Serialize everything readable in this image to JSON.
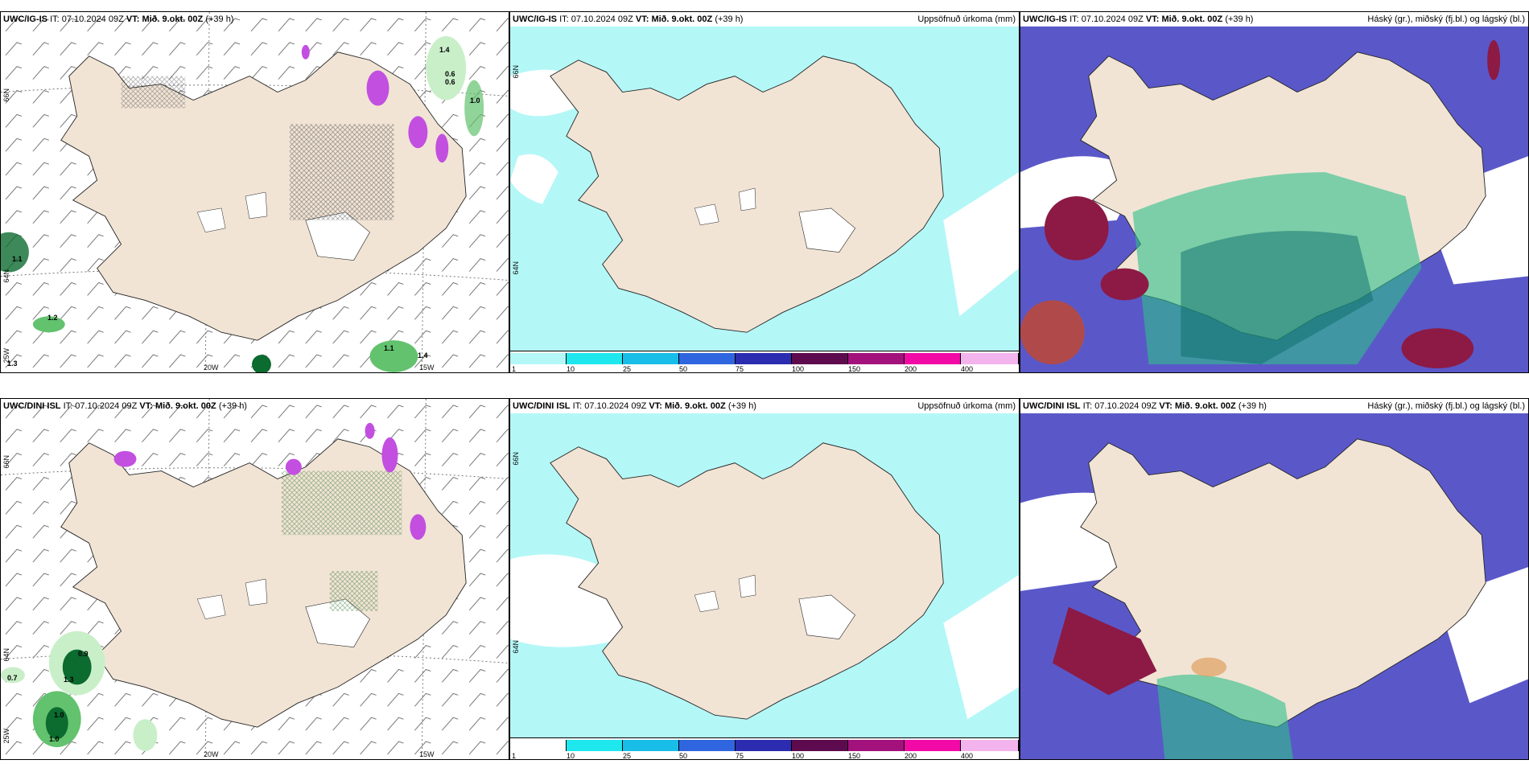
{
  "panels": {
    "top": {
      "wind": {
        "model": "UWC/IG-IS",
        "it_prefix": "IT:",
        "it_value": "07.10.2024 09Z",
        "vt_label": "VT: Mið. 9.okt. 00Z",
        "lead": "(+39 h)",
        "lat_66": "66N",
        "lat_64": "64N",
        "lon_20": "20W",
        "lon_15": "15W",
        "lon_25": "25W",
        "labels": [
          "1.4",
          "0.6",
          "0.6",
          "1.0",
          "1.1",
          "1.2",
          "1.1",
          "1.4",
          "1.3"
        ]
      },
      "precip": {
        "model": "UWC/IG-IS",
        "it_prefix": "IT:",
        "it_value": "07.10.2024 09Z",
        "vt_label": "VT: Mið. 9.okt. 00Z",
        "lead": "(+39 h)",
        "title": "Uppsöfnuð úrkoma (mm)",
        "lat_66": "66N",
        "lat_64": "64N"
      },
      "cloud": {
        "model": "UWC/IG-IS",
        "it_prefix": "IT:",
        "it_value": "07.10.2024 09Z",
        "vt_label": "VT: Mið. 9.okt. 00Z",
        "lead": "(+39 h)",
        "title": "Háský (gr.), miðský (fj.bl.) og lágský (bl.)"
      }
    },
    "bottom": {
      "wind": {
        "model": "UWC/DINI ISL",
        "it_prefix": "IT:",
        "it_value": "07.10.2024 09Z",
        "vt_label": "VT: Mið. 9.okt. 00Z",
        "lead": "(+39 h)",
        "lat_66": "66N",
        "lat_64": "64N",
        "lon_20": "20W",
        "lon_15": "15W",
        "lon_25": "25W",
        "labels": [
          "0.9",
          "0.7",
          "1.3",
          "1.0",
          "1.0"
        ]
      },
      "precip": {
        "model": "UWC/DINI ISL",
        "it_prefix": "IT:",
        "it_value": "07.10.2024 09Z",
        "vt_label": "VT: Mið. 9.okt. 00Z",
        "lead": "(+39 h)",
        "title": "Uppsöfnuð úrkoma (mm)",
        "lat_66": "66N",
        "lat_64": "64N"
      },
      "cloud": {
        "model": "UWC/DINI ISL",
        "it_prefix": "IT:",
        "it_value": "07.10.2024 09Z",
        "vt_label": "VT: Mið. 9.okt. 00Z",
        "lead": "(+39 h)",
        "title": "Háský (gr.), miðský (fj.bl.) og lágský (bl.)"
      }
    }
  },
  "colorbar": {
    "ticks": [
      "1",
      "10",
      "25",
      "50",
      "75",
      "100",
      "150",
      "200",
      "400"
    ],
    "colors": [
      "#b4f7f7",
      "#1ee8ee",
      "#18bde8",
      "#2f66e0",
      "#2b2cb0",
      "#5e0a4e",
      "#a3117c",
      "#f20aa6",
      "#f3b4ee"
    ]
  },
  "palette": {
    "land": "#f1e4d5",
    "sea": "#ffffff",
    "precip_light": "#b4f7f7",
    "green_light": "#c9efc9",
    "green_mid": "#62c26e",
    "green_dark": "#0c6b2f",
    "purple": "#c24fe0",
    "cloud_high": "#5a58c8",
    "cloud_mid": "#2fbf8a",
    "cloud_low": "#8c1a45"
  }
}
